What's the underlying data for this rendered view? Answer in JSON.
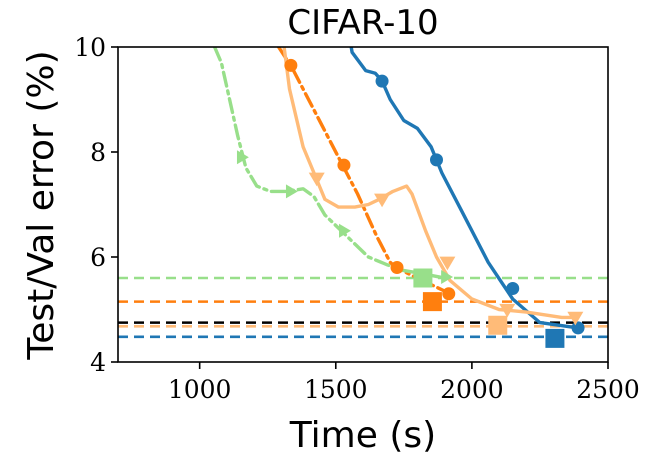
{
  "chart_data": {
    "type": "line",
    "title": "CIFAR-10",
    "xlabel": "Time (s)",
    "ylabel": "Test/Val error (%)",
    "xlim": [
      700,
      2500
    ],
    "ylim": [
      4,
      10
    ],
    "xticks": [
      1000,
      1500,
      2000,
      2500
    ],
    "yticks": [
      4,
      6,
      8,
      10
    ],
    "xtick_labels": [
      "1000",
      "1500",
      "2000",
      "2500"
    ],
    "ytick_labels": [
      "4",
      "6",
      "8",
      "10"
    ],
    "grid": false,
    "legend": "none",
    "series": [
      {
        "color": "#1f77b4",
        "style": "solid",
        "marker": "circle",
        "points": [
          [
            1550,
            10.2
          ],
          [
            1560,
            9.9
          ],
          [
            1610,
            9.55
          ],
          [
            1645,
            9.5
          ],
          [
            1670,
            9.35
          ],
          [
            1700,
            9.0
          ],
          [
            1750,
            8.6
          ],
          [
            1800,
            8.45
          ],
          [
            1850,
            8.1
          ],
          [
            1870,
            7.85
          ],
          [
            1890,
            7.6
          ],
          [
            1960,
            6.9
          ],
          [
            2060,
            5.9
          ],
          [
            2150,
            5.2
          ],
          [
            2250,
            4.75
          ],
          [
            2390,
            4.65
          ]
        ],
        "marker_points": [
          [
            1670,
            9.35
          ],
          [
            1870,
            7.85
          ],
          [
            2150,
            5.4
          ],
          [
            2390,
            4.65
          ]
        ],
        "final": [
          2305,
          4.45
        ],
        "final_marker": "square"
      },
      {
        "color": "#ff7f0e",
        "style": "dashdot",
        "marker": "circle",
        "points": [
          [
            1290,
            10.0
          ],
          [
            1340,
            9.6
          ],
          [
            1380,
            9.2
          ],
          [
            1450,
            8.5
          ],
          [
            1520,
            7.8
          ],
          [
            1580,
            7.2
          ],
          [
            1650,
            6.4
          ],
          [
            1700,
            5.9
          ],
          [
            1720,
            5.8
          ],
          [
            1780,
            5.65
          ],
          [
            1860,
            5.45
          ],
          [
            1900,
            5.35
          ],
          [
            1920,
            5.3
          ]
        ],
        "marker_points": [
          [
            1335,
            9.65
          ],
          [
            1530,
            7.75
          ],
          [
            1725,
            5.8
          ],
          [
            1915,
            5.3
          ]
        ],
        "final": [
          1855,
          5.15
        ],
        "final_marker": "square"
      },
      {
        "color": "#ffbb78",
        "style": "solid",
        "marker": "triangle-down",
        "points": [
          [
            1310,
            10.0
          ],
          [
            1330,
            9.2
          ],
          [
            1380,
            8.1
          ],
          [
            1420,
            7.6
          ],
          [
            1460,
            7.1
          ],
          [
            1510,
            6.95
          ],
          [
            1570,
            6.95
          ],
          [
            1620,
            7.0
          ],
          [
            1660,
            7.1
          ],
          [
            1710,
            7.25
          ],
          [
            1760,
            7.35
          ],
          [
            1780,
            7.2
          ],
          [
            1830,
            6.5
          ],
          [
            1870,
            6.0
          ],
          [
            1920,
            5.55
          ],
          [
            2000,
            5.2
          ],
          [
            2100,
            5.0
          ],
          [
            2200,
            4.95
          ],
          [
            2330,
            4.85
          ],
          [
            2380,
            4.85
          ]
        ],
        "marker_points": [
          [
            1430,
            7.5
          ],
          [
            1670,
            7.1
          ],
          [
            1910,
            5.9
          ],
          [
            2130,
            5.0
          ],
          [
            2380,
            4.85
          ]
        ],
        "final": [
          2095,
          4.7
        ],
        "final_marker": "square"
      },
      {
        "color": "#98df8a",
        "style": "dashdot",
        "marker": "triangle-right",
        "points": [
          [
            1055,
            10.0
          ],
          [
            1080,
            9.7
          ],
          [
            1110,
            9.0
          ],
          [
            1140,
            8.3
          ],
          [
            1170,
            7.7
          ],
          [
            1210,
            7.35
          ],
          [
            1260,
            7.25
          ],
          [
            1320,
            7.25
          ],
          [
            1380,
            7.3
          ],
          [
            1420,
            7.15
          ],
          [
            1460,
            6.8
          ],
          [
            1500,
            6.6
          ],
          [
            1560,
            6.3
          ],
          [
            1620,
            6.0
          ],
          [
            1690,
            5.85
          ],
          [
            1740,
            5.75
          ],
          [
            1800,
            5.7
          ],
          [
            1900,
            5.6
          ]
        ],
        "marker_points": [
          [
            1155,
            7.9
          ],
          [
            1335,
            7.25
          ],
          [
            1530,
            6.5
          ],
          [
            1905,
            5.62
          ]
        ],
        "final": [
          1820,
          5.6
        ],
        "final_marker": "square"
      }
    ],
    "hlines": [
      {
        "y": 5.6,
        "color": "#98df8a",
        "style": "dashed"
      },
      {
        "y": 5.15,
        "color": "#ff7f0e",
        "style": "dashed"
      },
      {
        "y": 4.75,
        "color": "#000000",
        "style": "dashed"
      },
      {
        "y": 4.68,
        "color": "#ffbb78",
        "style": "dashed"
      },
      {
        "y": 4.48,
        "color": "#1f77b4",
        "style": "dashed"
      }
    ]
  }
}
